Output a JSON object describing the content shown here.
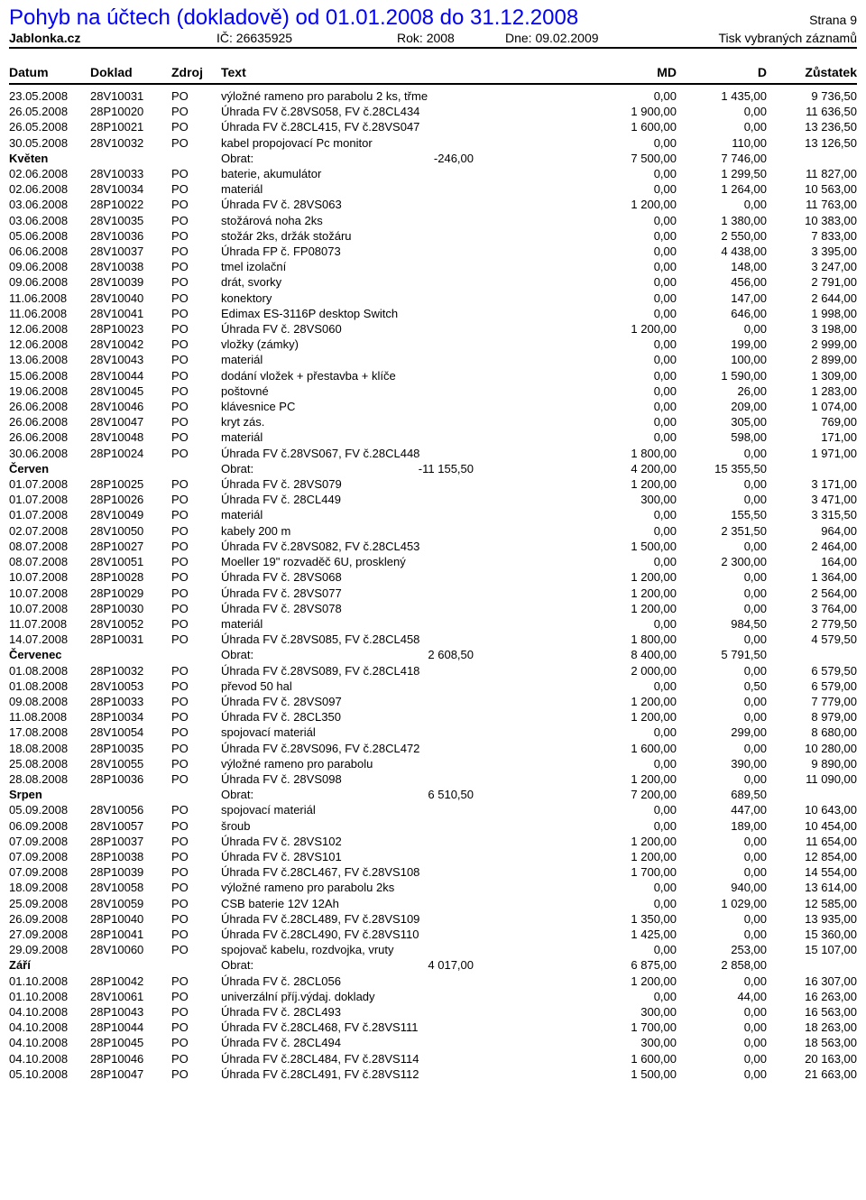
{
  "header": {
    "title": "Pohyb na účtech (dokladově) od 01.01.2008 do 31.12.2008",
    "page": "Strana 9",
    "company": "Jablonka.cz",
    "ic_label": "IČ:",
    "ic_value": "26635925",
    "rok_label": "Rok:",
    "rok_value": "2008",
    "dne_label": "Dne:",
    "dne_value": "09.02.2009",
    "print_note": "Tisk vybraných záznamů"
  },
  "columns": {
    "datum": "Datum",
    "doklad": "Doklad",
    "zdroj": "Zdroj",
    "text": "Text",
    "md": "MD",
    "d": "D",
    "zustatek": "Zůstatek"
  },
  "obrat_label": "Obrat:",
  "groups": [
    {
      "rows": [
        {
          "datum": "23.05.2008",
          "doklad": "28V10031",
          "zdroj": "PO",
          "text": "výložné rameno pro parabolu 2 ks, třme",
          "md": "0,00",
          "d": "1 435,00",
          "z": "9 736,50"
        },
        {
          "datum": "26.05.2008",
          "doklad": "28P10020",
          "zdroj": "PO",
          "text": "Úhrada FV č.28VS058, FV č.28CL434",
          "md": "1 900,00",
          "d": "0,00",
          "z": "11 636,50"
        },
        {
          "datum": "26.05.2008",
          "doklad": "28P10021",
          "zdroj": "PO",
          "text": "Úhrada FV č.28CL415, FV č.28VS047",
          "md": "1 600,00",
          "d": "0,00",
          "z": "13 236,50"
        },
        {
          "datum": "30.05.2008",
          "doklad": "28V10032",
          "zdroj": "PO",
          "text": "kabel propojovací Pc monitor",
          "md": "0,00",
          "d": "110,00",
          "z": "13 126,50"
        }
      ],
      "summary": {
        "name": "Květen",
        "obrat": "-246,00",
        "md": "7 500,00",
        "d": "7 746,00",
        "z": ""
      }
    },
    {
      "rows": [
        {
          "datum": "02.06.2008",
          "doklad": "28V10033",
          "zdroj": "PO",
          "text": "baterie, akumulátor",
          "md": "0,00",
          "d": "1 299,50",
          "z": "11 827,00"
        },
        {
          "datum": "02.06.2008",
          "doklad": "28V10034",
          "zdroj": "PO",
          "text": "materiál",
          "md": "0,00",
          "d": "1 264,00",
          "z": "10 563,00"
        },
        {
          "datum": "03.06.2008",
          "doklad": "28P10022",
          "zdroj": "PO",
          "text": "Úhrada FV č. 28VS063",
          "md": "1 200,00",
          "d": "0,00",
          "z": "11 763,00"
        },
        {
          "datum": "03.06.2008",
          "doklad": "28V10035",
          "zdroj": "PO",
          "text": "stožárová noha 2ks",
          "md": "0,00",
          "d": "1 380,00",
          "z": "10 383,00"
        },
        {
          "datum": "05.06.2008",
          "doklad": "28V10036",
          "zdroj": "PO",
          "text": "stožár 2ks, držák stožáru",
          "md": "0,00",
          "d": "2 550,00",
          "z": "7 833,00"
        },
        {
          "datum": "06.06.2008",
          "doklad": "28V10037",
          "zdroj": "PO",
          "text": "Úhrada FP č. FP08073",
          "md": "0,00",
          "d": "4 438,00",
          "z": "3 395,00"
        },
        {
          "datum": "09.06.2008",
          "doklad": "28V10038",
          "zdroj": "PO",
          "text": "tmel izolační",
          "md": "0,00",
          "d": "148,00",
          "z": "3 247,00"
        },
        {
          "datum": "09.06.2008",
          "doklad": "28V10039",
          "zdroj": "PO",
          "text": "drát, svorky",
          "md": "0,00",
          "d": "456,00",
          "z": "2 791,00"
        },
        {
          "datum": "11.06.2008",
          "doklad": "28V10040",
          "zdroj": "PO",
          "text": "konektory",
          "md": "0,00",
          "d": "147,00",
          "z": "2 644,00"
        },
        {
          "datum": "11.06.2008",
          "doklad": "28V10041",
          "zdroj": "PO",
          "text": "Edimax ES-3116P desktop Switch",
          "md": "0,00",
          "d": "646,00",
          "z": "1 998,00"
        },
        {
          "datum": "12.06.2008",
          "doklad": "28P10023",
          "zdroj": "PO",
          "text": "Úhrada FV č. 28VS060",
          "md": "1 200,00",
          "d": "0,00",
          "z": "3 198,00"
        },
        {
          "datum": "12.06.2008",
          "doklad": "28V10042",
          "zdroj": "PO",
          "text": "vložky (zámky)",
          "md": "0,00",
          "d": "199,00",
          "z": "2 999,00"
        },
        {
          "datum": "13.06.2008",
          "doklad": "28V10043",
          "zdroj": "PO",
          "text": "materiál",
          "md": "0,00",
          "d": "100,00",
          "z": "2 899,00"
        },
        {
          "datum": "15.06.2008",
          "doklad": "28V10044",
          "zdroj": "PO",
          "text": "dodání vložek + přestavba + klíče",
          "md": "0,00",
          "d": "1 590,00",
          "z": "1 309,00"
        },
        {
          "datum": "19.06.2008",
          "doklad": "28V10045",
          "zdroj": "PO",
          "text": "poštovné",
          "md": "0,00",
          "d": "26,00",
          "z": "1 283,00"
        },
        {
          "datum": "26.06.2008",
          "doklad": "28V10046",
          "zdroj": "PO",
          "text": "klávesnice PC",
          "md": "0,00",
          "d": "209,00",
          "z": "1 074,00"
        },
        {
          "datum": "26.06.2008",
          "doklad": "28V10047",
          "zdroj": "PO",
          "text": "kryt zás.",
          "md": "0,00",
          "d": "305,00",
          "z": "769,00"
        },
        {
          "datum": "26.06.2008",
          "doklad": "28V10048",
          "zdroj": "PO",
          "text": "materiál",
          "md": "0,00",
          "d": "598,00",
          "z": "171,00"
        },
        {
          "datum": "30.06.2008",
          "doklad": "28P10024",
          "zdroj": "PO",
          "text": "Úhrada FV č.28VS067, FV č.28CL448",
          "md": "1 800,00",
          "d": "0,00",
          "z": "1 971,00"
        }
      ],
      "summary": {
        "name": "Červen",
        "obrat": "-11 155,50",
        "md": "4 200,00",
        "d": "15 355,50",
        "z": ""
      }
    },
    {
      "rows": [
        {
          "datum": "01.07.2008",
          "doklad": "28P10025",
          "zdroj": "PO",
          "text": "Úhrada FV č. 28VS079",
          "md": "1 200,00",
          "d": "0,00",
          "z": "3 171,00"
        },
        {
          "datum": "01.07.2008",
          "doklad": "28P10026",
          "zdroj": "PO",
          "text": "Úhrada FV č. 28CL449",
          "md": "300,00",
          "d": "0,00",
          "z": "3 471,00"
        },
        {
          "datum": "01.07.2008",
          "doklad": "28V10049",
          "zdroj": "PO",
          "text": "materiál",
          "md": "0,00",
          "d": "155,50",
          "z": "3 315,50"
        },
        {
          "datum": "02.07.2008",
          "doklad": "28V10050",
          "zdroj": "PO",
          "text": "kabely 200 m",
          "md": "0,00",
          "d": "2 351,50",
          "z": "964,00"
        },
        {
          "datum": "08.07.2008",
          "doklad": "28P10027",
          "zdroj": "PO",
          "text": "Úhrada FV č.28VS082, FV č.28CL453",
          "md": "1 500,00",
          "d": "0,00",
          "z": "2 464,00"
        },
        {
          "datum": "08.07.2008",
          "doklad": "28V10051",
          "zdroj": "PO",
          "text": "Moeller 19\" rozvaděč 6U, prosklený",
          "md": "0,00",
          "d": "2 300,00",
          "z": "164,00"
        },
        {
          "datum": "10.07.2008",
          "doklad": "28P10028",
          "zdroj": "PO",
          "text": "Úhrada FV č. 28VS068",
          "md": "1 200,00",
          "d": "0,00",
          "z": "1 364,00"
        },
        {
          "datum": "10.07.2008",
          "doklad": "28P10029",
          "zdroj": "PO",
          "text": "Úhrada FV č. 28VS077",
          "md": "1 200,00",
          "d": "0,00",
          "z": "2 564,00"
        },
        {
          "datum": "10.07.2008",
          "doklad": "28P10030",
          "zdroj": "PO",
          "text": "Úhrada FV č. 28VS078",
          "md": "1 200,00",
          "d": "0,00",
          "z": "3 764,00"
        },
        {
          "datum": "11.07.2008",
          "doklad": "28V10052",
          "zdroj": "PO",
          "text": "materiál",
          "md": "0,00",
          "d": "984,50",
          "z": "2 779,50"
        },
        {
          "datum": "14.07.2008",
          "doklad": "28P10031",
          "zdroj": "PO",
          "text": "Úhrada FV č.28VS085, FV č.28CL458",
          "md": "1 800,00",
          "d": "0,00",
          "z": "4 579,50"
        }
      ],
      "summary": {
        "name": "Červenec",
        "obrat": "2 608,50",
        "md": "8 400,00",
        "d": "5 791,50",
        "z": ""
      }
    },
    {
      "rows": [
        {
          "datum": "01.08.2008",
          "doklad": "28P10032",
          "zdroj": "PO",
          "text": "Úhrada FV č.28VS089, FV č.28CL418",
          "md": "2 000,00",
          "d": "0,00",
          "z": "6 579,50"
        },
        {
          "datum": "01.08.2008",
          "doklad": "28V10053",
          "zdroj": "PO",
          "text": "převod 50 hal",
          "md": "0,00",
          "d": "0,50",
          "z": "6 579,00"
        },
        {
          "datum": "09.08.2008",
          "doklad": "28P10033",
          "zdroj": "PO",
          "text": "Úhrada FV č. 28VS097",
          "md": "1 200,00",
          "d": "0,00",
          "z": "7 779,00"
        },
        {
          "datum": "11.08.2008",
          "doklad": "28P10034",
          "zdroj": "PO",
          "text": "Úhrada FV č. 28CL350",
          "md": "1 200,00",
          "d": "0,00",
          "z": "8 979,00"
        },
        {
          "datum": "17.08.2008",
          "doklad": "28V10054",
          "zdroj": "PO",
          "text": "spojovací materiál",
          "md": "0,00",
          "d": "299,00",
          "z": "8 680,00"
        },
        {
          "datum": "18.08.2008",
          "doklad": "28P10035",
          "zdroj": "PO",
          "text": "Úhrada FV č.28VS096, FV č.28CL472",
          "md": "1 600,00",
          "d": "0,00",
          "z": "10 280,00"
        },
        {
          "datum": "25.08.2008",
          "doklad": "28V10055",
          "zdroj": "PO",
          "text": "výložné rameno pro parabolu",
          "md": "0,00",
          "d": "390,00",
          "z": "9 890,00"
        },
        {
          "datum": "28.08.2008",
          "doklad": "28P10036",
          "zdroj": "PO",
          "text": "Úhrada FV č. 28VS098",
          "md": "1 200,00",
          "d": "0,00",
          "z": "11 090,00"
        }
      ],
      "summary": {
        "name": "Srpen",
        "obrat": "6 510,50",
        "md": "7 200,00",
        "d": "689,50",
        "z": ""
      }
    },
    {
      "rows": [
        {
          "datum": "05.09.2008",
          "doklad": "28V10056",
          "zdroj": "PO",
          "text": "spojovací materiál",
          "md": "0,00",
          "d": "447,00",
          "z": "10 643,00"
        },
        {
          "datum": "06.09.2008",
          "doklad": "28V10057",
          "zdroj": "PO",
          "text": "šroub",
          "md": "0,00",
          "d": "189,00",
          "z": "10 454,00"
        },
        {
          "datum": "07.09.2008",
          "doklad": "28P10037",
          "zdroj": "PO",
          "text": "Úhrada FV č. 28VS102",
          "md": "1 200,00",
          "d": "0,00",
          "z": "11 654,00"
        },
        {
          "datum": "07.09.2008",
          "doklad": "28P10038",
          "zdroj": "PO",
          "text": "Úhrada FV č. 28VS101",
          "md": "1 200,00",
          "d": "0,00",
          "z": "12 854,00"
        },
        {
          "datum": "07.09.2008",
          "doklad": "28P10039",
          "zdroj": "PO",
          "text": "Úhrada FV č.28CL467, FV č.28VS108",
          "md": "1 700,00",
          "d": "0,00",
          "z": "14 554,00"
        },
        {
          "datum": "18.09.2008",
          "doklad": "28V10058",
          "zdroj": "PO",
          "text": "výložné rameno pro parabolu 2ks",
          "md": "0,00",
          "d": "940,00",
          "z": "13 614,00"
        },
        {
          "datum": "25.09.2008",
          "doklad": "28V10059",
          "zdroj": "PO",
          "text": "CSB baterie 12V 12Ah",
          "md": "0,00",
          "d": "1 029,00",
          "z": "12 585,00"
        },
        {
          "datum": "26.09.2008",
          "doklad": "28P10040",
          "zdroj": "PO",
          "text": "Úhrada FV č.28CL489, FV č.28VS109",
          "md": "1 350,00",
          "d": "0,00",
          "z": "13 935,00"
        },
        {
          "datum": "27.09.2008",
          "doklad": "28P10041",
          "zdroj": "PO",
          "text": "Úhrada FV č.28CL490, FV č.28VS110",
          "md": "1 425,00",
          "d": "0,00",
          "z": "15 360,00"
        },
        {
          "datum": "29.09.2008",
          "doklad": "28V10060",
          "zdroj": "PO",
          "text": "spojovač kabelu, rozdvojka, vruty",
          "md": "0,00",
          "d": "253,00",
          "z": "15 107,00"
        }
      ],
      "summary": {
        "name": "Září",
        "obrat": "4 017,00",
        "md": "6 875,00",
        "d": "2 858,00",
        "z": ""
      }
    },
    {
      "rows": [
        {
          "datum": "01.10.2008",
          "doklad": "28P10042",
          "zdroj": "PO",
          "text": "Úhrada FV č. 28CL056",
          "md": "1 200,00",
          "d": "0,00",
          "z": "16 307,00"
        },
        {
          "datum": "01.10.2008",
          "doklad": "28V10061",
          "zdroj": "PO",
          "text": "univerzální příj.výdaj. doklady",
          "md": "0,00",
          "d": "44,00",
          "z": "16 263,00"
        },
        {
          "datum": "04.10.2008",
          "doklad": "28P10043",
          "zdroj": "PO",
          "text": "Úhrada FV č. 28CL493",
          "md": "300,00",
          "d": "0,00",
          "z": "16 563,00"
        },
        {
          "datum": "04.10.2008",
          "doklad": "28P10044",
          "zdroj": "PO",
          "text": "Úhrada FV č.28CL468, FV č.28VS111",
          "md": "1 700,00",
          "d": "0,00",
          "z": "18 263,00"
        },
        {
          "datum": "04.10.2008",
          "doklad": "28P10045",
          "zdroj": "PO",
          "text": "Úhrada FV č. 28CL494",
          "md": "300,00",
          "d": "0,00",
          "z": "18 563,00"
        },
        {
          "datum": "04.10.2008",
          "doklad": "28P10046",
          "zdroj": "PO",
          "text": "Úhrada FV č.28CL484, FV č.28VS114",
          "md": "1 600,00",
          "d": "0,00",
          "z": "20 163,00"
        },
        {
          "datum": "05.10.2008",
          "doklad": "28P10047",
          "zdroj": "PO",
          "text": "Úhrada FV č.28CL491, FV č.28VS112",
          "md": "1 500,00",
          "d": "0,00",
          "z": "21 663,00"
        }
      ]
    }
  ]
}
